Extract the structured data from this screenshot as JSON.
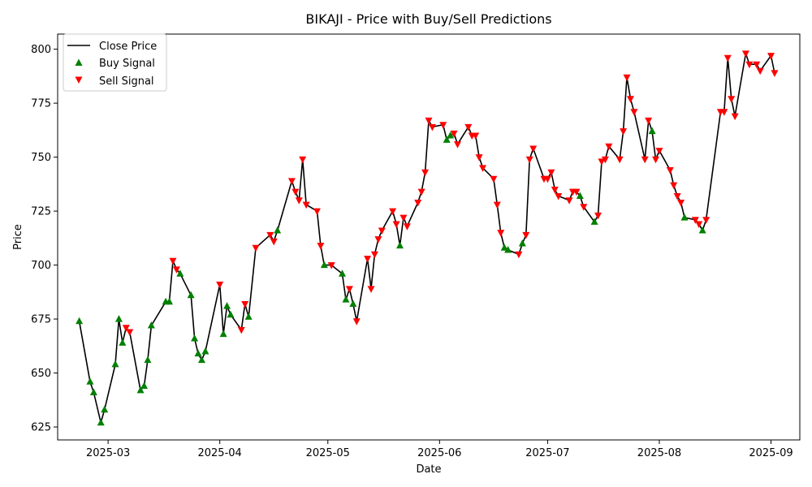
{
  "chart_data": {
    "type": "line",
    "title": "BIKAJI - Price with Buy/Sell Predictions",
    "xlabel": "Date",
    "ylabel": "Price",
    "xlim": [
      "2025-02-15",
      "2025-09-09"
    ],
    "ylim": [
      619,
      807
    ],
    "x_ticks": [
      "2025-03",
      "2025-04",
      "2025-05",
      "2025-06",
      "2025-07",
      "2025-08",
      "2025-09"
    ],
    "y_ticks": [
      625,
      650,
      675,
      700,
      725,
      750,
      775,
      800
    ],
    "grid": false,
    "legend_position": "top-left",
    "colors": {
      "close": "#000000",
      "buy": "#008000",
      "sell": "#ff0000"
    },
    "series": [
      {
        "name": "Close Price",
        "points": [
          [
            "2025-02-21",
            674
          ],
          [
            "2025-02-24",
            646
          ],
          [
            "2025-02-25",
            641
          ],
          [
            "2025-02-27",
            627
          ],
          [
            "2025-02-28",
            633
          ],
          [
            "2025-03-03",
            654
          ],
          [
            "2025-03-04",
            675
          ],
          [
            "2025-03-05",
            664
          ],
          [
            "2025-03-06",
            671
          ],
          [
            "2025-03-07",
            669
          ],
          [
            "2025-03-10",
            642
          ],
          [
            "2025-03-11",
            644
          ],
          [
            "2025-03-12",
            656
          ],
          [
            "2025-03-13",
            672
          ],
          [
            "2025-03-17",
            683
          ],
          [
            "2025-03-18",
            683
          ],
          [
            "2025-03-19",
            702
          ],
          [
            "2025-03-20",
            698
          ],
          [
            "2025-03-21",
            696
          ],
          [
            "2025-03-24",
            686
          ],
          [
            "2025-03-25",
            666
          ],
          [
            "2025-03-26",
            659
          ],
          [
            "2025-03-27",
            656
          ],
          [
            "2025-03-28",
            660
          ],
          [
            "2025-04-01",
            691
          ],
          [
            "2025-04-02",
            668
          ],
          [
            "2025-04-03",
            681
          ],
          [
            "2025-04-04",
            677
          ],
          [
            "2025-04-07",
            670
          ],
          [
            "2025-04-08",
            682
          ],
          [
            "2025-04-09",
            676
          ],
          [
            "2025-04-11",
            708
          ],
          [
            "2025-04-15",
            714
          ],
          [
            "2025-04-16",
            711
          ],
          [
            "2025-04-17",
            716
          ],
          [
            "2025-04-21",
            739
          ],
          [
            "2025-04-22",
            734
          ],
          [
            "2025-04-23",
            730
          ],
          [
            "2025-04-24",
            749
          ],
          [
            "2025-04-25",
            728
          ],
          [
            "2025-04-28",
            725
          ],
          [
            "2025-04-29",
            709
          ],
          [
            "2025-04-30",
            700
          ],
          [
            "2025-05-02",
            700
          ],
          [
            "2025-05-05",
            696
          ],
          [
            "2025-05-06",
            684
          ],
          [
            "2025-05-07",
            689
          ],
          [
            "2025-05-08",
            682
          ],
          [
            "2025-05-09",
            674
          ],
          [
            "2025-05-12",
            703
          ],
          [
            "2025-05-13",
            689
          ],
          [
            "2025-05-14",
            705
          ],
          [
            "2025-05-15",
            712
          ],
          [
            "2025-05-16",
            716
          ],
          [
            "2025-05-19",
            725
          ],
          [
            "2025-05-20",
            719
          ],
          [
            "2025-05-21",
            709
          ],
          [
            "2025-05-22",
            722
          ],
          [
            "2025-05-23",
            718
          ],
          [
            "2025-05-26",
            729
          ],
          [
            "2025-05-27",
            734
          ],
          [
            "2025-05-28",
            743
          ],
          [
            "2025-05-29",
            767
          ],
          [
            "2025-05-30",
            764
          ],
          [
            "2025-06-02",
            765
          ],
          [
            "2025-06-03",
            758
          ],
          [
            "2025-06-04",
            760
          ],
          [
            "2025-06-05",
            761
          ],
          [
            "2025-06-06",
            756
          ],
          [
            "2025-06-09",
            764
          ],
          [
            "2025-06-10",
            760
          ],
          [
            "2025-06-11",
            760
          ],
          [
            "2025-06-12",
            750
          ],
          [
            "2025-06-13",
            745
          ],
          [
            "2025-06-16",
            740
          ],
          [
            "2025-06-17",
            728
          ],
          [
            "2025-06-18",
            715
          ],
          [
            "2025-06-19",
            708
          ],
          [
            "2025-06-20",
            707
          ],
          [
            "2025-06-23",
            705
          ],
          [
            "2025-06-24",
            710
          ],
          [
            "2025-06-25",
            714
          ],
          [
            "2025-06-26",
            749
          ],
          [
            "2025-06-27",
            754
          ],
          [
            "2025-06-30",
            740
          ],
          [
            "2025-07-01",
            740
          ],
          [
            "2025-07-02",
            743
          ],
          [
            "2025-07-03",
            735
          ],
          [
            "2025-07-04",
            732
          ],
          [
            "2025-07-07",
            730
          ],
          [
            "2025-07-08",
            734
          ],
          [
            "2025-07-09",
            734
          ],
          [
            "2025-07-10",
            732
          ],
          [
            "2025-07-11",
            727
          ],
          [
            "2025-07-14",
            720
          ],
          [
            "2025-07-15",
            723
          ],
          [
            "2025-07-16",
            748
          ],
          [
            "2025-07-17",
            749
          ],
          [
            "2025-07-18",
            755
          ],
          [
            "2025-07-21",
            749
          ],
          [
            "2025-07-22",
            762
          ],
          [
            "2025-07-23",
            787
          ],
          [
            "2025-07-24",
            777
          ],
          [
            "2025-07-25",
            771
          ],
          [
            "2025-07-28",
            749
          ],
          [
            "2025-07-29",
            767
          ],
          [
            "2025-07-30",
            762
          ],
          [
            "2025-07-31",
            749
          ],
          [
            "2025-08-01",
            753
          ],
          [
            "2025-08-04",
            744
          ],
          [
            "2025-08-05",
            737
          ],
          [
            "2025-08-06",
            732
          ],
          [
            "2025-08-07",
            729
          ],
          [
            "2025-08-08",
            722
          ],
          [
            "2025-08-11",
            721
          ],
          [
            "2025-08-12",
            719
          ],
          [
            "2025-08-13",
            716
          ],
          [
            "2025-08-14",
            721
          ],
          [
            "2025-08-18",
            771
          ],
          [
            "2025-08-19",
            771
          ],
          [
            "2025-08-20",
            796
          ],
          [
            "2025-08-21",
            777
          ],
          [
            "2025-08-22",
            769
          ],
          [
            "2025-08-25",
            798
          ],
          [
            "2025-08-26",
            793
          ],
          [
            "2025-08-28",
            793
          ],
          [
            "2025-08-29",
            790
          ],
          [
            "2025-09-01",
            797
          ],
          [
            "2025-09-02",
            789
          ]
        ]
      },
      {
        "name": "Buy Signal",
        "points": [
          [
            "2025-02-21",
            674
          ],
          [
            "2025-02-24",
            646
          ],
          [
            "2025-02-25",
            641
          ],
          [
            "2025-02-27",
            627
          ],
          [
            "2025-02-28",
            633
          ],
          [
            "2025-03-03",
            654
          ],
          [
            "2025-03-04",
            675
          ],
          [
            "2025-03-05",
            664
          ],
          [
            "2025-03-10",
            642
          ],
          [
            "2025-03-11",
            644
          ],
          [
            "2025-03-12",
            656
          ],
          [
            "2025-03-13",
            672
          ],
          [
            "2025-03-17",
            683
          ],
          [
            "2025-03-18",
            683
          ],
          [
            "2025-03-21",
            696
          ],
          [
            "2025-03-24",
            686
          ],
          [
            "2025-03-25",
            666
          ],
          [
            "2025-03-26",
            659
          ],
          [
            "2025-03-27",
            656
          ],
          [
            "2025-03-28",
            660
          ],
          [
            "2025-04-02",
            668
          ],
          [
            "2025-04-03",
            681
          ],
          [
            "2025-04-04",
            677
          ],
          [
            "2025-04-09",
            676
          ],
          [
            "2025-04-17",
            716
          ],
          [
            "2025-04-30",
            700
          ],
          [
            "2025-05-05",
            696
          ],
          [
            "2025-05-06",
            684
          ],
          [
            "2025-05-08",
            682
          ],
          [
            "2025-05-21",
            709
          ],
          [
            "2025-06-03",
            758
          ],
          [
            "2025-06-04",
            760
          ],
          [
            "2025-06-19",
            708
          ],
          [
            "2025-06-20",
            707
          ],
          [
            "2025-06-24",
            710
          ],
          [
            "2025-07-10",
            732
          ],
          [
            "2025-07-14",
            720
          ],
          [
            "2025-07-30",
            762
          ],
          [
            "2025-08-08",
            722
          ],
          [
            "2025-08-13",
            716
          ]
        ]
      },
      {
        "name": "Sell Signal",
        "points": [
          [
            "2025-03-06",
            671
          ],
          [
            "2025-03-07",
            669
          ],
          [
            "2025-03-19",
            702
          ],
          [
            "2025-03-20",
            698
          ],
          [
            "2025-04-01",
            691
          ],
          [
            "2025-04-07",
            670
          ],
          [
            "2025-04-08",
            682
          ],
          [
            "2025-04-11",
            708
          ],
          [
            "2025-04-15",
            714
          ],
          [
            "2025-04-16",
            711
          ],
          [
            "2025-04-21",
            739
          ],
          [
            "2025-04-22",
            734
          ],
          [
            "2025-04-23",
            730
          ],
          [
            "2025-04-24",
            749
          ],
          [
            "2025-04-25",
            728
          ],
          [
            "2025-04-28",
            725
          ],
          [
            "2025-04-29",
            709
          ],
          [
            "2025-05-02",
            700
          ],
          [
            "2025-05-07",
            689
          ],
          [
            "2025-05-09",
            674
          ],
          [
            "2025-05-12",
            703
          ],
          [
            "2025-05-13",
            689
          ],
          [
            "2025-05-14",
            705
          ],
          [
            "2025-05-15",
            712
          ],
          [
            "2025-05-16",
            716
          ],
          [
            "2025-05-19",
            725
          ],
          [
            "2025-05-20",
            719
          ],
          [
            "2025-05-22",
            722
          ],
          [
            "2025-05-23",
            718
          ],
          [
            "2025-05-26",
            729
          ],
          [
            "2025-05-27",
            734
          ],
          [
            "2025-05-28",
            743
          ],
          [
            "2025-05-29",
            767
          ],
          [
            "2025-05-30",
            764
          ],
          [
            "2025-06-02",
            765
          ],
          [
            "2025-06-05",
            761
          ],
          [
            "2025-06-06",
            756
          ],
          [
            "2025-06-09",
            764
          ],
          [
            "2025-06-10",
            760
          ],
          [
            "2025-06-11",
            760
          ],
          [
            "2025-06-12",
            750
          ],
          [
            "2025-06-13",
            745
          ],
          [
            "2025-06-16",
            740
          ],
          [
            "2025-06-17",
            728
          ],
          [
            "2025-06-18",
            715
          ],
          [
            "2025-06-23",
            705
          ],
          [
            "2025-06-25",
            714
          ],
          [
            "2025-06-26",
            749
          ],
          [
            "2025-06-27",
            754
          ],
          [
            "2025-06-30",
            740
          ],
          [
            "2025-07-01",
            740
          ],
          [
            "2025-07-02",
            743
          ],
          [
            "2025-07-03",
            735
          ],
          [
            "2025-07-04",
            732
          ],
          [
            "2025-07-07",
            730
          ],
          [
            "2025-07-08",
            734
          ],
          [
            "2025-07-09",
            734
          ],
          [
            "2025-07-11",
            727
          ],
          [
            "2025-07-15",
            723
          ],
          [
            "2025-07-16",
            748
          ],
          [
            "2025-07-17",
            749
          ],
          [
            "2025-07-18",
            755
          ],
          [
            "2025-07-21",
            749
          ],
          [
            "2025-07-22",
            762
          ],
          [
            "2025-07-23",
            787
          ],
          [
            "2025-07-24",
            777
          ],
          [
            "2025-07-25",
            771
          ],
          [
            "2025-07-28",
            749
          ],
          [
            "2025-07-29",
            767
          ],
          [
            "2025-07-31",
            749
          ],
          [
            "2025-08-01",
            753
          ],
          [
            "2025-08-04",
            744
          ],
          [
            "2025-08-05",
            737
          ],
          [
            "2025-08-06",
            732
          ],
          [
            "2025-08-07",
            729
          ],
          [
            "2025-08-11",
            721
          ],
          [
            "2025-08-12",
            719
          ],
          [
            "2025-08-14",
            721
          ],
          [
            "2025-08-18",
            771
          ],
          [
            "2025-08-19",
            771
          ],
          [
            "2025-08-20",
            796
          ],
          [
            "2025-08-21",
            777
          ],
          [
            "2025-08-22",
            769
          ],
          [
            "2025-08-25",
            798
          ],
          [
            "2025-08-26",
            793
          ],
          [
            "2025-08-28",
            793
          ],
          [
            "2025-08-29",
            790
          ],
          [
            "2025-09-01",
            797
          ],
          [
            "2025-09-02",
            789
          ]
        ]
      }
    ]
  }
}
